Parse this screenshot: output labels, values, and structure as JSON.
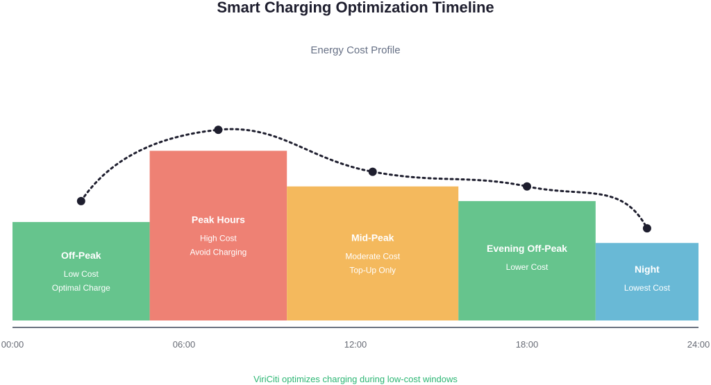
{
  "chart_data": {
    "type": "bar",
    "title": "Smart Charging Optimization Timeline",
    "subtitle": "Energy Cost Profile",
    "footer": "ViriCiti optimizes charging during low-cost windows",
    "x_range": [
      0,
      24
    ],
    "y_range": [
      0,
      10
    ],
    "x_ticks": [
      {
        "value": 0,
        "label": "00:00"
      },
      {
        "value": 6,
        "label": "06:00"
      },
      {
        "value": 12,
        "label": "12:00"
      },
      {
        "value": 18,
        "label": "18:00"
      },
      {
        "value": 24,
        "label": "24:00"
      }
    ],
    "segments": [
      {
        "name": "Off-Peak",
        "start": 0,
        "end": 4.8,
        "cost": 4.7,
        "color": "#66c48d",
        "lines": [
          "Low Cost",
          "Optimal Charge"
        ]
      },
      {
        "name": "Peak Hours",
        "start": 4.8,
        "end": 9.6,
        "cost": 8.1,
        "color": "#ee8174",
        "lines": [
          "High Cost",
          "Avoid Charging"
        ]
      },
      {
        "name": "Mid-Peak",
        "start": 9.6,
        "end": 15.6,
        "cost": 6.4,
        "color": "#f4b95d",
        "lines": [
          "Moderate Cost",
          "Top-Up Only"
        ]
      },
      {
        "name": "Evening Off-Peak",
        "start": 15.6,
        "end": 20.4,
        "cost": 5.7,
        "color": "#66c48d",
        "lines": [
          "Lower Cost"
        ]
      },
      {
        "name": "Night",
        "start": 20.4,
        "end": 24,
        "cost": 3.7,
        "color": "#69b9d6",
        "lines": [
          "Lowest Cost"
        ]
      }
    ],
    "price_curve": {
      "style": "dotted",
      "color": "#1e1e2e",
      "points": [
        {
          "x": 2.4,
          "y": 5.7
        },
        {
          "x": 7.2,
          "y": 9.1
        },
        {
          "x": 12.6,
          "y": 7.1
        },
        {
          "x": 18,
          "y": 6.4
        },
        {
          "x": 22.2,
          "y": 4.4
        }
      ]
    }
  }
}
